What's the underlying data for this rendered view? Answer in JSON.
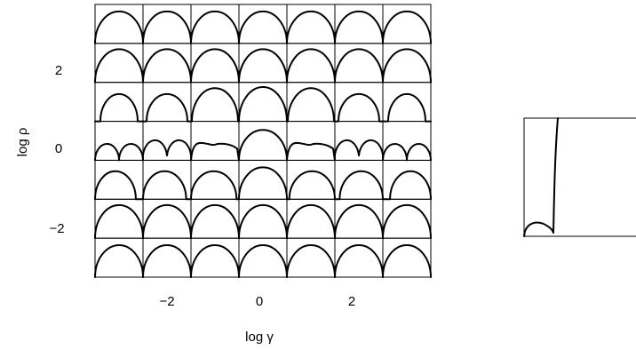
{
  "chart_data": [
    {
      "type": "small-multiples",
      "xlabel": "log γ",
      "ylabel": "log ρ",
      "x_ticks": [
        {
          "value": -2,
          "label": "−2"
        },
        {
          "value": 0,
          "label": "0"
        },
        {
          "value": 2,
          "label": "2"
        }
      ],
      "y_ticks": [
        {
          "value": 2,
          "label": "2"
        },
        {
          "value": 0,
          "label": "0"
        },
        {
          "value": -2,
          "label": "−2"
        }
      ],
      "columns_log_gamma": [
        -3,
        -2,
        -1,
        0,
        1,
        2,
        3
      ],
      "rows_log_rho": [
        3,
        2,
        1,
        0,
        -1,
        -2,
        -3
      ],
      "grid": true
    },
    {
      "type": "line",
      "description_visible": false
    }
  ]
}
